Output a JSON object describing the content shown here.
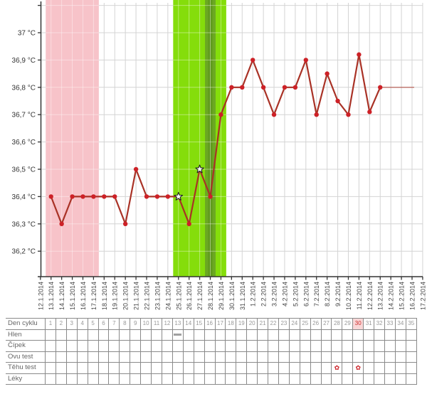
{
  "colors": {
    "line": "#a93226",
    "marker": "#cd2127",
    "star_fill": "#ffffff",
    "star_stroke": "#222222",
    "grid": "#d4d4d4",
    "axis": "#333333",
    "y_label_text": "#333333",
    "x_label_text": "#444444",
    "menstruation": "#f7c3c9",
    "fertile": "#85dd0b",
    "ovulation_band": "#6ba822",
    "ovulation_core": "#5f9a1c",
    "table_border": "#8a8a8a",
    "table_label_text": "#666666",
    "table_day_text": "#999999",
    "highlight_day_bg": "#f9d7d7",
    "highlight_day_text": "#cc2b2b",
    "flower": "#cc2127",
    "mucus_dash": "#a0a0a0"
  },
  "chart_data": {
    "type": "line",
    "unit": "°C",
    "ylim": [
      36.1,
      37.12
    ],
    "grid": true,
    "y_ticks": [
      {
        "value": 37.1,
        "label": ""
      },
      {
        "value": 37.0,
        "label": "37 °C"
      },
      {
        "value": 36.9,
        "label": "36,9 °C"
      },
      {
        "value": 36.8,
        "label": "36,8 °C"
      },
      {
        "value": 36.7,
        "label": "36,7 °C"
      },
      {
        "value": 36.6,
        "label": "36,6 °C"
      },
      {
        "value": 36.5,
        "label": "36,5 °C"
      },
      {
        "value": 36.4,
        "label": "36,4 °C"
      },
      {
        "value": 36.3,
        "label": "36,3 °C"
      },
      {
        "value": 36.2,
        "label": "36,2 °C"
      }
    ],
    "x_dates": [
      "12.1.2014",
      "13.1.2014",
      "14.1.2014",
      "15.1.2014",
      "16.1.2014",
      "17.1.2014",
      "18.1.2014",
      "19.1.2014",
      "20.1.2014",
      "21.1.2014",
      "22.1.2014",
      "23.1.2014",
      "24.1.2014",
      "25.1.2014",
      "26.1.2014",
      "27.1.2014",
      "28.1.2014",
      "29.1.2014",
      "30.1.2014",
      "31.1.2014",
      "1.2.2014",
      "2.2.2014",
      "3.2.2014",
      "4.2.2014",
      "5.2.2014",
      "6.2.2014",
      "7.2.2014",
      "8.2.2014",
      "9.2.2014",
      "10.2.2014",
      "11.2.2014",
      "12.2.2014",
      "13.2.2014",
      "14.2.2014",
      "15.2.2014",
      "16.2.2014",
      "17.2.2014"
    ],
    "points": [
      {
        "day": 1,
        "date": "13.1.2014",
        "temp": 36.4
      },
      {
        "day": 2,
        "date": "14.1.2014",
        "temp": 36.3
      },
      {
        "day": 3,
        "date": "15.1.2014",
        "temp": 36.4
      },
      {
        "day": 4,
        "date": "16.1.2014",
        "temp": 36.4
      },
      {
        "day": 5,
        "date": "17.1.2014",
        "temp": 36.4
      },
      {
        "day": 6,
        "date": "18.1.2014",
        "temp": 36.4
      },
      {
        "day": 7,
        "date": "19.1.2014",
        "temp": 36.4
      },
      {
        "day": 8,
        "date": "20.1.2014",
        "temp": 36.3
      },
      {
        "day": 9,
        "date": "21.1.2014",
        "temp": 36.5
      },
      {
        "day": 10,
        "date": "22.1.2014",
        "temp": 36.4
      },
      {
        "day": 11,
        "date": "23.1.2014",
        "temp": 36.4
      },
      {
        "day": 12,
        "date": "24.1.2014",
        "temp": 36.4
      },
      {
        "day": 13,
        "date": "25.1.2014",
        "temp": 36.4,
        "star": true
      },
      {
        "day": 14,
        "date": "26.1.2014",
        "temp": 36.3
      },
      {
        "day": 15,
        "date": "27.1.2014",
        "temp": 36.5,
        "star": true
      },
      {
        "day": 16,
        "date": "28.1.2014",
        "temp": 36.4
      },
      {
        "day": 17,
        "date": "29.1.2014",
        "temp": 36.7
      },
      {
        "day": 18,
        "date": "30.1.2014",
        "temp": 36.8
      },
      {
        "day": 19,
        "date": "31.1.2014",
        "temp": 36.8
      },
      {
        "day": 20,
        "date": "1.2.2014",
        "temp": 36.9
      },
      {
        "day": 21,
        "date": "2.2.2014",
        "temp": 36.8
      },
      {
        "day": 22,
        "date": "3.2.2014",
        "temp": 36.7
      },
      {
        "day": 23,
        "date": "4.2.2014",
        "temp": 36.8
      },
      {
        "day": 24,
        "date": "5.2.2014",
        "temp": 36.8
      },
      {
        "day": 25,
        "date": "6.2.2014",
        "temp": 36.9
      },
      {
        "day": 26,
        "date": "7.2.2014",
        "temp": 36.7
      },
      {
        "day": 27,
        "date": "8.2.2014",
        "temp": 36.85
      },
      {
        "day": 28,
        "date": "9.2.2014",
        "temp": 36.75
      },
      {
        "day": 29,
        "date": "10.2.2014",
        "temp": 36.7
      },
      {
        "day": 30,
        "date": "11.2.2014",
        "temp": 36.92
      },
      {
        "day": 31,
        "date": "12.2.2014",
        "temp": 36.71
      },
      {
        "day": 32,
        "date": "13.2.2014",
        "temp": 36.8
      }
    ],
    "star_days": [
      13,
      15
    ],
    "flat_tail": {
      "temp": 36.8,
      "from_day": 32,
      "to_day": 35.2
    },
    "regions": [
      {
        "name": "menstruation",
        "from_day": 0.5,
        "to_day": 5.5,
        "color_key": "menstruation",
        "stripe_days": [
          1,
          2,
          3,
          4,
          5
        ]
      },
      {
        "name": "fertile-window",
        "from_day": 12.5,
        "to_day": 17.5,
        "color_key": "fertile",
        "stripe_days": [
          13,
          14,
          15,
          16,
          17
        ]
      },
      {
        "name": "ovulation-band",
        "from_day": 15.5,
        "to_day": 16.5,
        "color_key": "ovulation_band",
        "stripe_days": []
      },
      {
        "name": "ovulation-core",
        "from_day": 15.8,
        "to_day": 16.2,
        "color_key": "ovulation_core",
        "stripe_days": []
      }
    ]
  },
  "table": {
    "row_labels": [
      "Den cyklu",
      "Hlen",
      "Čípek",
      "Ovu test",
      "Těhu test",
      "Léky"
    ],
    "row_keys": [
      "dencyklu",
      "hlen",
      "cipek",
      "ovutest",
      "tehutest",
      "leky"
    ],
    "days": [
      1,
      2,
      3,
      4,
      5,
      6,
      7,
      8,
      9,
      10,
      11,
      12,
      13,
      14,
      15,
      16,
      17,
      18,
      19,
      20,
      21,
      22,
      23,
      24,
      25,
      26,
      27,
      28,
      29,
      30,
      31,
      32,
      33,
      34,
      35
    ],
    "highlighted_day": 30,
    "mucus_dash_days": [
      13
    ],
    "pregnancy_test_flower_days": [
      28,
      30
    ],
    "flower_glyph": "✿"
  }
}
